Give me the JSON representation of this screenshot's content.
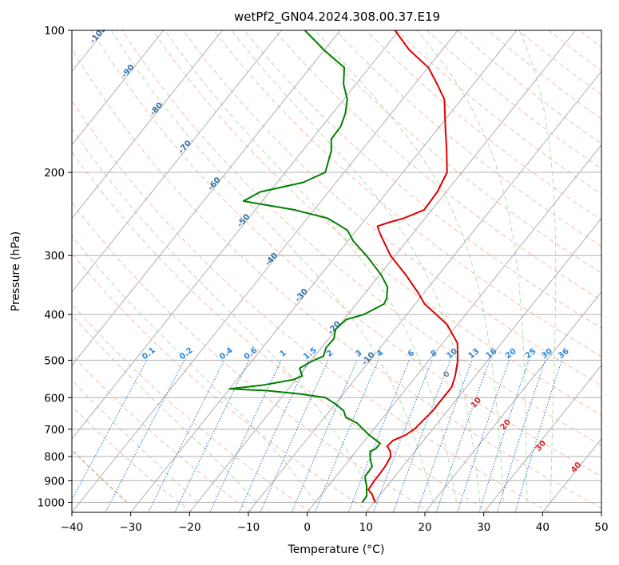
{
  "chart_data": {
    "type": "line",
    "variant": "skew-T log-P diagram",
    "title": "wetPf2_GN04.2024.308.00.37.E19",
    "xlabel": "Temperature (°C)",
    "ylabel": "Pressure (hPa)",
    "xlim": [
      -40,
      50
    ],
    "ylim": [
      1050,
      100
    ],
    "y_scale": "log",
    "x_ticks": [
      -40,
      -30,
      -20,
      -10,
      0,
      10,
      20,
      30,
      40,
      50
    ],
    "x_tick_labels": [
      "−40",
      "−30",
      "−20",
      "−10",
      "0",
      "10",
      "20",
      "30",
      "40",
      "50"
    ],
    "y_ticks": [
      1000,
      900,
      800,
      700,
      600,
      500,
      400,
      300,
      200,
      100
    ],
    "y_tick_labels": [
      "1000",
      "900",
      "800",
      "700",
      "600",
      "500",
      "400",
      "300",
      "200",
      "100"
    ],
    "grid": true,
    "colors": {
      "temperature": "#e00000",
      "dewpoint": "#008000",
      "isotherm": "#b0b0b0",
      "dry_adiabat": "#f4a58a",
      "moist_adiabat": "#a8d5a2",
      "mixing_ratio": "#1f77d4",
      "mixing_label": "#2a87e0",
      "isotherm_label": "#2a6fa8",
      "moist_label": "#d62728",
      "tan_curve": "#d2b48c"
    },
    "series": [
      {
        "color": "#e00000",
        "points": [
          [
            1000,
            10.2
          ],
          [
            960,
            8.5
          ],
          [
            940,
            7.3
          ],
          [
            900,
            7.1
          ],
          [
            880,
            7.1
          ],
          [
            840,
            7.0
          ],
          [
            800,
            6.6
          ],
          [
            780,
            5.8
          ],
          [
            760,
            4.6
          ],
          [
            740,
            4.8
          ],
          [
            720,
            6.2
          ],
          [
            700,
            6.9
          ],
          [
            680,
            7.1
          ],
          [
            640,
            7.5
          ],
          [
            600,
            7.5
          ],
          [
            570,
            7.5
          ],
          [
            540,
            6.6
          ],
          [
            500,
            4.9
          ],
          [
            460,
            2.5
          ],
          [
            420,
            -1.8
          ],
          [
            400,
            -5.0
          ],
          [
            380,
            -8.4
          ],
          [
            360,
            -11.0
          ],
          [
            330,
            -15.5
          ],
          [
            300,
            -20.8
          ],
          [
            270,
            -25.5
          ],
          [
            260,
            -27.0
          ],
          [
            255,
            -25.5
          ],
          [
            250,
            -23.6
          ],
          [
            240,
            -21.3
          ],
          [
            220,
            -21.5
          ],
          [
            200,
            -22.5
          ],
          [
            180,
            -25.5
          ],
          [
            160,
            -29.0
          ],
          [
            140,
            -32.9
          ],
          [
            130,
            -36.2
          ],
          [
            120,
            -39.9
          ],
          [
            110,
            -45.6
          ],
          [
            100,
            -50.7
          ]
        ]
      },
      {
        "color": "#008000",
        "points": [
          [
            1000,
            8.0
          ],
          [
            970,
            7.9
          ],
          [
            950,
            7.3
          ],
          [
            920,
            6.4
          ],
          [
            900,
            5.6
          ],
          [
            880,
            4.9
          ],
          [
            860,
            4.9
          ],
          [
            840,
            4.8
          ],
          [
            820,
            3.9
          ],
          [
            800,
            3.1
          ],
          [
            780,
            2.4
          ],
          [
            770,
            3.0
          ],
          [
            750,
            3.0
          ],
          [
            720,
            0.0
          ],
          [
            700,
            -1.8
          ],
          [
            680,
            -3.6
          ],
          [
            660,
            -6.4
          ],
          [
            640,
            -7.6
          ],
          [
            620,
            -9.8
          ],
          [
            600,
            -12.5
          ],
          [
            590,
            -17.0
          ],
          [
            580,
            -23.4
          ],
          [
            575,
            -30.0
          ],
          [
            565,
            -25.0
          ],
          [
            550,
            -20.5
          ],
          [
            540,
            -19.4
          ],
          [
            520,
            -20.9
          ],
          [
            505,
            -20.0
          ],
          [
            490,
            -18.5
          ],
          [
            470,
            -19.2
          ],
          [
            450,
            -19.1
          ],
          [
            430,
            -20.1
          ],
          [
            410,
            -19.6
          ],
          [
            400,
            -17.3
          ],
          [
            380,
            -15.3
          ],
          [
            370,
            -15.6
          ],
          [
            350,
            -17.0
          ],
          [
            330,
            -19.7
          ],
          [
            300,
            -24.9
          ],
          [
            280,
            -29.0
          ],
          [
            265,
            -31.6
          ],
          [
            250,
            -36.6
          ],
          [
            240,
            -43.4
          ],
          [
            230,
            -53.2
          ],
          [
            220,
            -51.6
          ],
          [
            210,
            -45.6
          ],
          [
            200,
            -43.2
          ],
          [
            180,
            -45.1
          ],
          [
            170,
            -46.7
          ],
          [
            160,
            -46.8
          ],
          [
            150,
            -47.8
          ],
          [
            140,
            -49.4
          ],
          [
            130,
            -52.1
          ],
          [
            120,
            -54.2
          ],
          [
            110,
            -60.1
          ],
          [
            100,
            -66.0
          ]
        ]
      }
    ],
    "isotherm_labels": [
      "-100",
      "-90",
      "-80",
      "-70",
      "-60",
      "-50",
      "-40",
      "-30",
      "-20",
      "-10"
    ],
    "mixing_ratio_labels": [
      "0.1",
      "0.2",
      "0.4",
      "0.6",
      "1",
      "1.5",
      "2",
      "3",
      "4",
      "6",
      "8",
      "10",
      "13",
      "16",
      "20",
      "25",
      "30",
      "36"
    ],
    "moist_adiabat_labels": [
      "0",
      "10",
      "20",
      "30",
      "40"
    ]
  }
}
